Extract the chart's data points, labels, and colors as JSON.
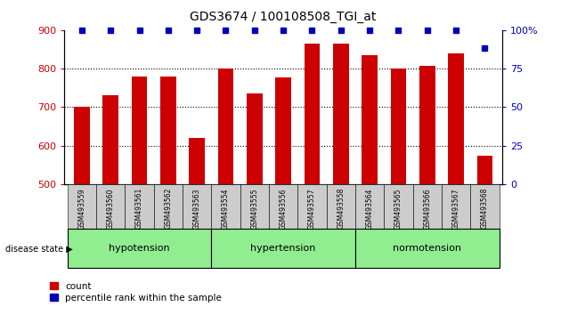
{
  "title": "GDS3674 / 100108508_TGI_at",
  "samples": [
    "GSM493559",
    "GSM493560",
    "GSM493561",
    "GSM493562",
    "GSM493563",
    "GSM493554",
    "GSM493555",
    "GSM493556",
    "GSM493557",
    "GSM493558",
    "GSM493564",
    "GSM493565",
    "GSM493566",
    "GSM493567",
    "GSM493568"
  ],
  "counts": [
    700,
    730,
    780,
    780,
    620,
    800,
    735,
    778,
    865,
    865,
    835,
    800,
    808,
    840,
    575
  ],
  "percentile_ranks": [
    100,
    100,
    100,
    100,
    100,
    100,
    100,
    100,
    100,
    100,
    100,
    100,
    100,
    100,
    88
  ],
  "groups": [
    {
      "label": "hypotension",
      "start": 0,
      "end": 4
    },
    {
      "label": "hypertension",
      "start": 5,
      "end": 9
    },
    {
      "label": "normotension",
      "start": 10,
      "end": 14
    }
  ],
  "ylim_left": [
    500,
    900
  ],
  "ylim_right": [
    0,
    100
  ],
  "yticks_left": [
    500,
    600,
    700,
    800,
    900
  ],
  "yticks_right": [
    0,
    25,
    50,
    75,
    100
  ],
  "bar_color": "#cc0000",
  "percentile_color": "#0000bb",
  "grid_color": "black",
  "bg_color": "white",
  "label_bg_color": "#cccccc",
  "group_bg_color": "#90EE90",
  "disease_state_label": "disease state",
  "legend_count_label": "count",
  "legend_pct_label": "percentile rank within the sample"
}
